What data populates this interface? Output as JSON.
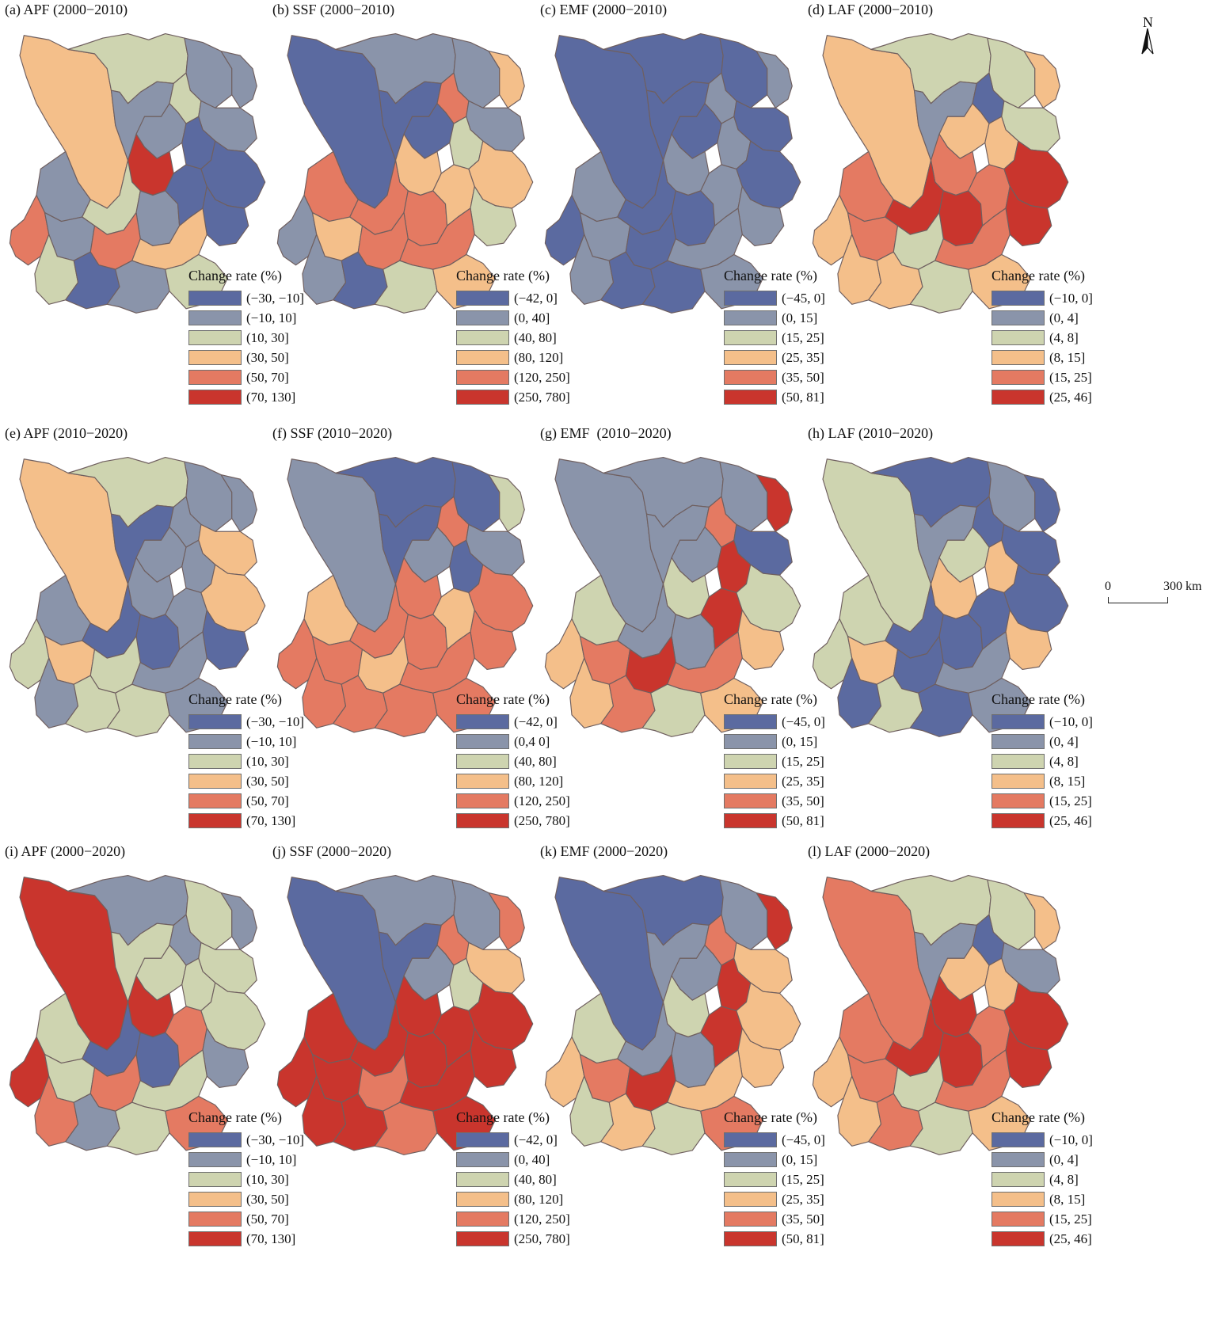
{
  "figure": {
    "legend_title": "Change rate (%)",
    "north_label": "N",
    "scale_bar": {
      "zero": "0",
      "distance": "300 km"
    }
  },
  "colors": {
    "c1": "#5b6aa0",
    "c2": "#8a94aa",
    "c3": "#ced4b0",
    "c4": "#f4bf8a",
    "c5": "#e47a62",
    "c6": "#c9352d"
  },
  "legends": {
    "APF": [
      "(−30, −10]",
      "(−10, 10]",
      "(10, 30]",
      "(30, 50]",
      "(50, 70]",
      "(70, 130]"
    ],
    "SSF": [
      "(−42, 0]",
      "(0, 40]",
      "(40, 80]",
      "(80, 120]",
      "(120, 250]",
      "(250, 780]"
    ],
    "SSF_f": [
      "(−42, 0]",
      "(0,4 0]",
      "(40, 80]",
      "(80, 120]",
      "(120, 250]",
      "(250, 780]"
    ],
    "EMF": [
      "(−45, 0]",
      "(0, 15]",
      "(15, 25]",
      "(25, 35]",
      "(35, 50]",
      "(50, 81]"
    ],
    "LAF": [
      "(−10, 0]",
      "(0, 4]",
      "(4, 8]",
      "(8, 15]",
      "(15, 25]",
      "(25, 46]"
    ]
  },
  "panels": [
    {
      "id": "a",
      "title": "(a) APF (2000−2010)",
      "legend": "APF",
      "regions": [
        4,
        3,
        2,
        2,
        2,
        3,
        2,
        2,
        1,
        6,
        2,
        3,
        2,
        1,
        1,
        1,
        5,
        2,
        5,
        4,
        3,
        1,
        2,
        3
      ]
    },
    {
      "id": "b",
      "title": "(b) SSF (2000−2010)",
      "legend": "SSF",
      "regions": [
        1,
        2,
        2,
        4,
        1,
        5,
        1,
        2,
        3,
        4,
        5,
        5,
        5,
        4,
        4,
        3,
        2,
        4,
        5,
        5,
        2,
        1,
        3,
        4
      ]
    },
    {
      "id": "c",
      "title": "(c) EMF (2000−2010)",
      "legend": "EMF",
      "regions": [
        1,
        1,
        1,
        2,
        1,
        2,
        1,
        1,
        2,
        2,
        2,
        1,
        1,
        2,
        1,
        2,
        1,
        2,
        1,
        2,
        2,
        1,
        1,
        2
      ]
    },
    {
      "id": "d",
      "title": "(d) LAF (2000−2010)",
      "legend": "LAF",
      "regions": [
        4,
        3,
        3,
        4,
        2,
        1,
        4,
        3,
        4,
        5,
        5,
        6,
        6,
        5,
        6,
        6,
        4,
        5,
        3,
        5,
        4,
        4,
        3,
        4
      ]
    },
    {
      "id": "e",
      "title": "(e) APF (2010−2020)",
      "legend": "APF",
      "regions": [
        4,
        3,
        2,
        2,
        1,
        2,
        2,
        4,
        2,
        2,
        2,
        1,
        1,
        2,
        4,
        1,
        3,
        4,
        3,
        2,
        2,
        3,
        3,
        2
      ]
    },
    {
      "id": "f",
      "title": "(f) SSF (2010−2020)",
      "legend": "SSF_f",
      "regions": [
        2,
        1,
        1,
        3,
        1,
        5,
        2,
        2,
        1,
        5,
        4,
        5,
        5,
        4,
        5,
        5,
        5,
        5,
        4,
        5,
        5,
        5,
        5,
        5
      ]
    },
    {
      "id": "g",
      "title": "(g) EMF  (2010−2020)",
      "legend": "EMF",
      "regions": [
        2,
        2,
        2,
        6,
        2,
        5,
        2,
        1,
        6,
        3,
        3,
        2,
        2,
        6,
        3,
        4,
        4,
        5,
        6,
        5,
        4,
        5,
        3,
        4
      ]
    },
    {
      "id": "h",
      "title": "(h) LAF (2010−2020)",
      "legend": "LAF",
      "regions": [
        3,
        1,
        2,
        1,
        2,
        1,
        3,
        1,
        4,
        4,
        3,
        1,
        1,
        1,
        1,
        4,
        3,
        4,
        1,
        2,
        1,
        3,
        1,
        2
      ]
    },
    {
      "id": "i",
      "title": "(i) APF (2000−2020)",
      "legend": "APF",
      "regions": [
        6,
        2,
        3,
        2,
        3,
        2,
        3,
        3,
        3,
        6,
        3,
        1,
        1,
        5,
        3,
        2,
        6,
        3,
        5,
        3,
        5,
        2,
        3,
        5
      ]
    },
    {
      "id": "j",
      "title": "(j) SSF (2000−2020)",
      "legend": "SSF",
      "regions": [
        1,
        2,
        2,
        5,
        1,
        5,
        2,
        4,
        3,
        6,
        6,
        6,
        6,
        6,
        6,
        6,
        6,
        6,
        5,
        6,
        6,
        6,
        5,
        6
      ]
    },
    {
      "id": "k",
      "title": "(k) EMF (2000−2020)",
      "legend": "EMF",
      "regions": [
        1,
        1,
        2,
        6,
        2,
        5,
        2,
        4,
        6,
        3,
        3,
        2,
        2,
        6,
        4,
        4,
        4,
        5,
        6,
        4,
        3,
        4,
        3,
        5
      ]
    },
    {
      "id": "l",
      "title": "(l) LAF (2000−2020)",
      "legend": "LAF",
      "regions": [
        5,
        3,
        3,
        4,
        2,
        1,
        4,
        2,
        4,
        6,
        5,
        6,
        6,
        5,
        6,
        6,
        4,
        5,
        3,
        5,
        4,
        5,
        3,
        4
      ]
    }
  ]
}
